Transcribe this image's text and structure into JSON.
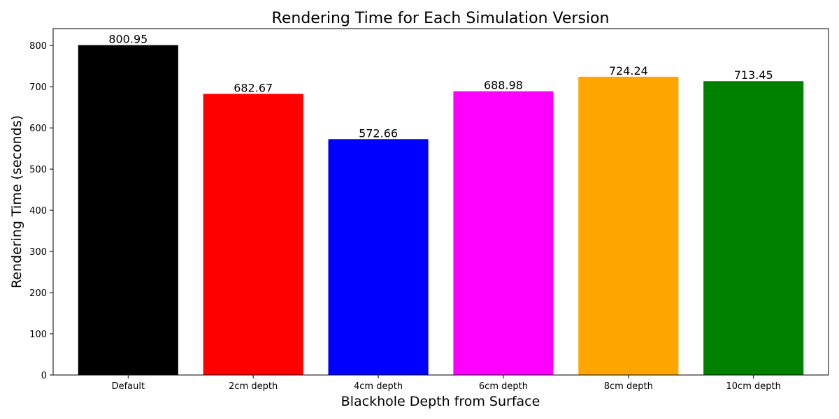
{
  "chart_data": {
    "type": "bar",
    "title": "Rendering Time for Each Simulation Version",
    "xlabel": "Blackhole Depth from Surface",
    "ylabel": "Rendering Time (seconds)",
    "categories": [
      "Default",
      "2cm depth",
      "4cm depth",
      "6cm depth",
      "8cm depth",
      "10cm depth"
    ],
    "values": [
      800.95,
      682.67,
      572.66,
      688.98,
      724.24,
      713.45
    ],
    "value_labels": [
      "800.95",
      "682.67",
      "572.66",
      "688.98",
      "724.24",
      "713.45"
    ],
    "colors": [
      "#000000",
      "#ff0000",
      "#0000ff",
      "#ff00ff",
      "#ffa500",
      "#008000"
    ],
    "ylim": [
      0,
      841
    ],
    "yticks": [
      0,
      100,
      200,
      300,
      400,
      500,
      600,
      700,
      800
    ],
    "ytick_labels": [
      "0",
      "100",
      "200",
      "300",
      "400",
      "500",
      "600",
      "700",
      "800"
    ],
    "grid": false,
    "legend": "none"
  }
}
